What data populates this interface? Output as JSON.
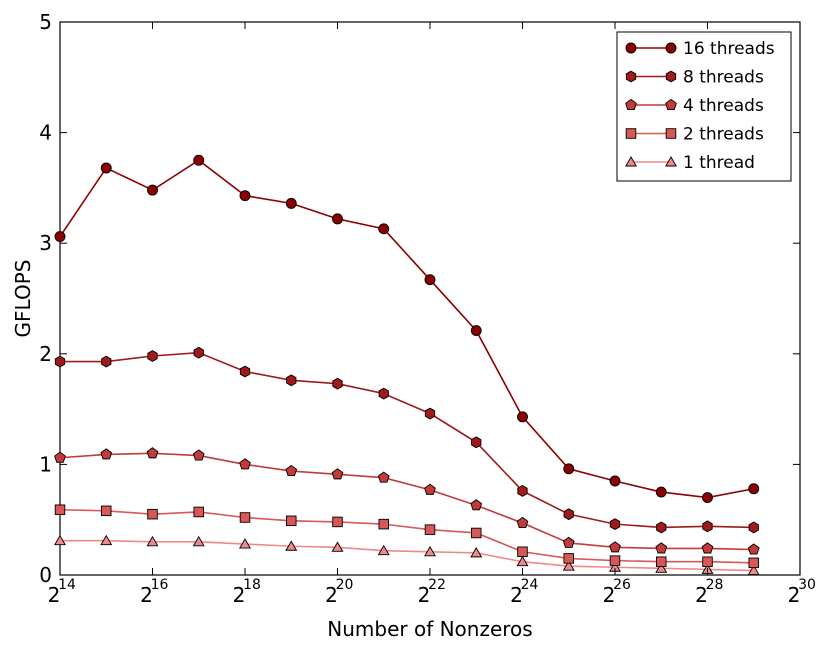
{
  "chart_data": {
    "type": "line",
    "title": "",
    "xlabel": "Number of Nonzeros",
    "ylabel": "GFLOPS",
    "x_scale": "log2",
    "x_tick_base": "2",
    "x_tick_exponents": [
      "14",
      "16",
      "18",
      "20",
      "22",
      "24",
      "26",
      "28",
      "30"
    ],
    "y_ticks": [
      "0",
      "1",
      "2",
      "3",
      "4",
      "5"
    ],
    "xlim_exponent": [
      14,
      30
    ],
    "ylim": [
      0,
      5
    ],
    "grid": false,
    "legend_position": "top-right",
    "x_exponents": [
      14,
      15,
      16,
      17,
      18,
      19,
      20,
      21,
      22,
      23,
      24,
      25,
      26,
      27,
      28,
      29
    ],
    "series": [
      {
        "name": "16 threads",
        "marker": "circle",
        "color": "#8b0000",
        "values": [
          3.06,
          3.68,
          3.48,
          3.75,
          3.43,
          3.36,
          3.22,
          3.13,
          2.67,
          2.21,
          1.43,
          0.96,
          0.85,
          0.75,
          0.7,
          0.78
        ]
      },
      {
        "name": "8 threads",
        "marker": "hexagon",
        "color": "#a01a1a",
        "values": [
          1.93,
          1.93,
          1.98,
          2.01,
          1.84,
          1.76,
          1.73,
          1.64,
          1.46,
          1.2,
          0.76,
          0.55,
          0.46,
          0.43,
          0.44,
          0.43
        ]
      },
      {
        "name": "4 threads",
        "marker": "pentagon",
        "color": "#c23b3b",
        "values": [
          1.06,
          1.09,
          1.1,
          1.08,
          1.0,
          0.94,
          0.91,
          0.88,
          0.77,
          0.63,
          0.47,
          0.29,
          0.25,
          0.24,
          0.24,
          0.23
        ]
      },
      {
        "name": "2 threads",
        "marker": "square",
        "color": "#d85757",
        "values": [
          0.59,
          0.58,
          0.55,
          0.57,
          0.52,
          0.49,
          0.48,
          0.46,
          0.41,
          0.38,
          0.21,
          0.15,
          0.13,
          0.12,
          0.12,
          0.11
        ]
      },
      {
        "name": "1 thread",
        "marker": "triangle",
        "color": "#ee8a8a",
        "values": [
          0.31,
          0.31,
          0.3,
          0.3,
          0.28,
          0.26,
          0.25,
          0.22,
          0.21,
          0.2,
          0.12,
          0.08,
          0.07,
          0.06,
          0.05,
          0.04
        ]
      }
    ]
  }
}
